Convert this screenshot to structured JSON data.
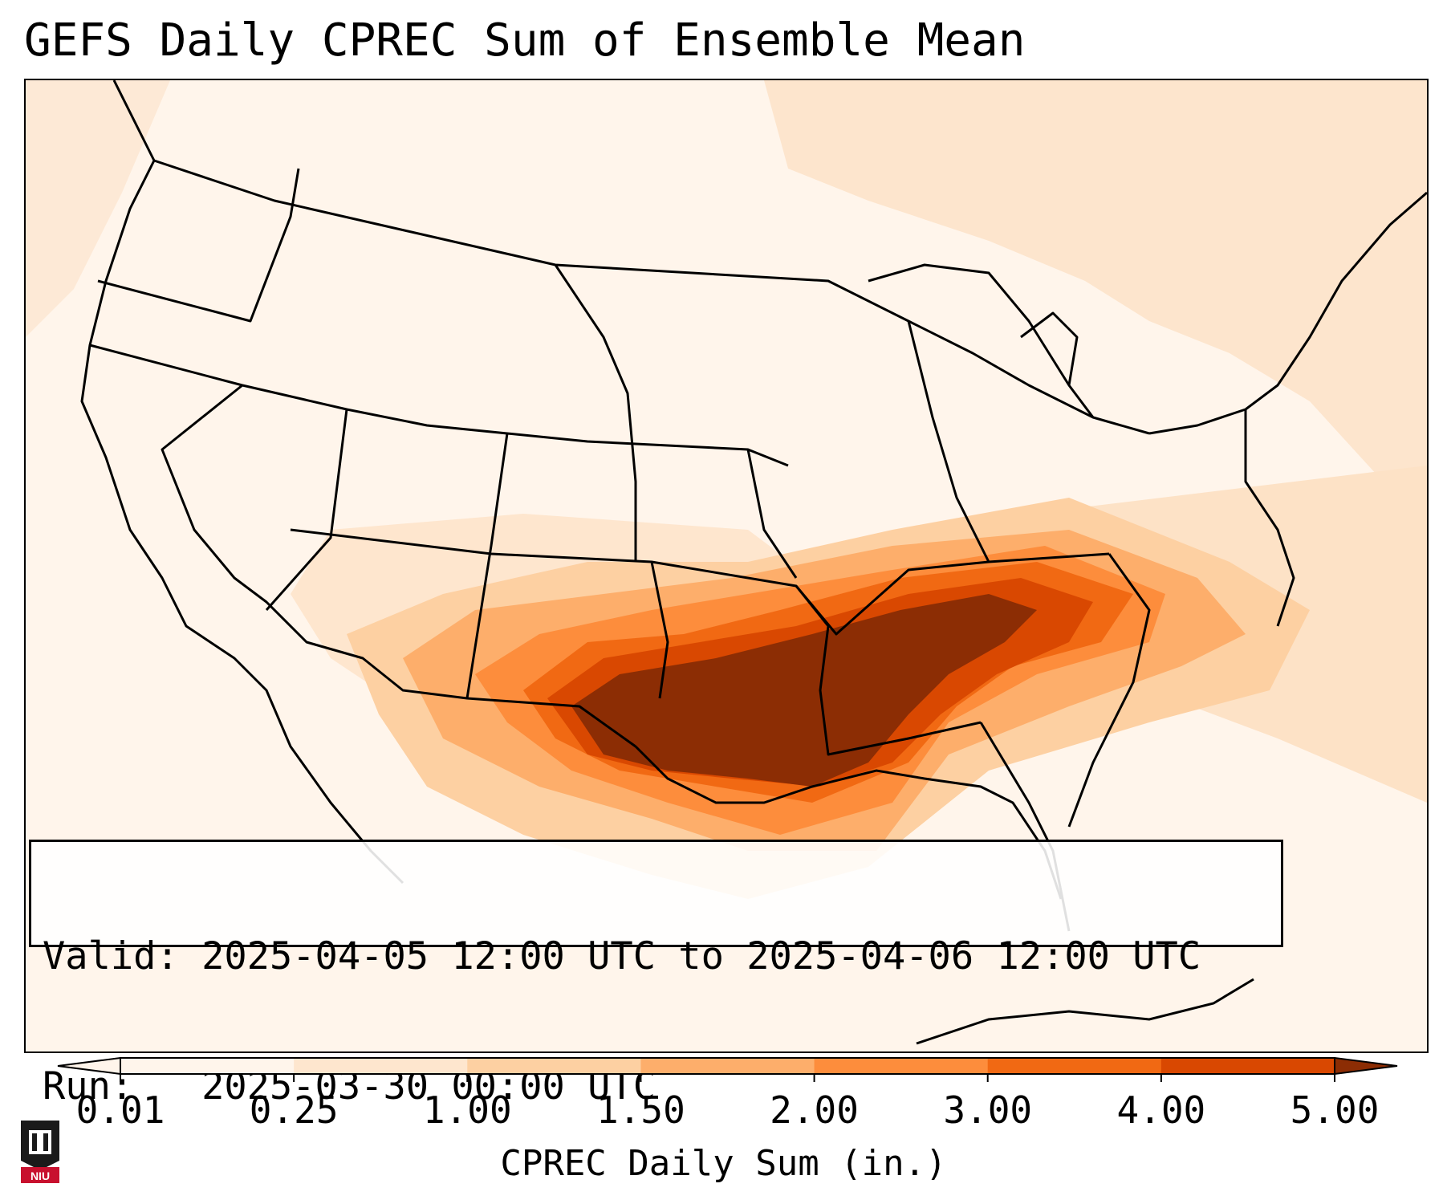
{
  "title": "GEFS Daily CPREC Sum of Ensemble Mean",
  "info": {
    "valid_line": "Valid: 2025-04-05 12:00 UTC to 2025-04-06 12:00 UTC",
    "run_line": "Run:   2025-03-30 00:00 UTC"
  },
  "colorbar": {
    "label": "CPREC Daily Sum (in.)",
    "ticks": [
      "0.01",
      "0.25",
      "1.00",
      "1.50",
      "2.00",
      "3.00",
      "4.00",
      "5.00"
    ],
    "colors": [
      "#fff5eb",
      "#fee6ce",
      "#fdd0a2",
      "#fdae6b",
      "#fd8d3c",
      "#f16913",
      "#d94801",
      "#8c2d04"
    ],
    "extend": "both"
  },
  "map": {
    "region": "Continental United States",
    "projection": "Lambert Conformal",
    "heaviest_precip_area": "Texas, Oklahoma, Arkansas, Tennessee Valley to Carolinas"
  },
  "logo": {
    "text": "NIU",
    "color": "#c8102e"
  }
}
